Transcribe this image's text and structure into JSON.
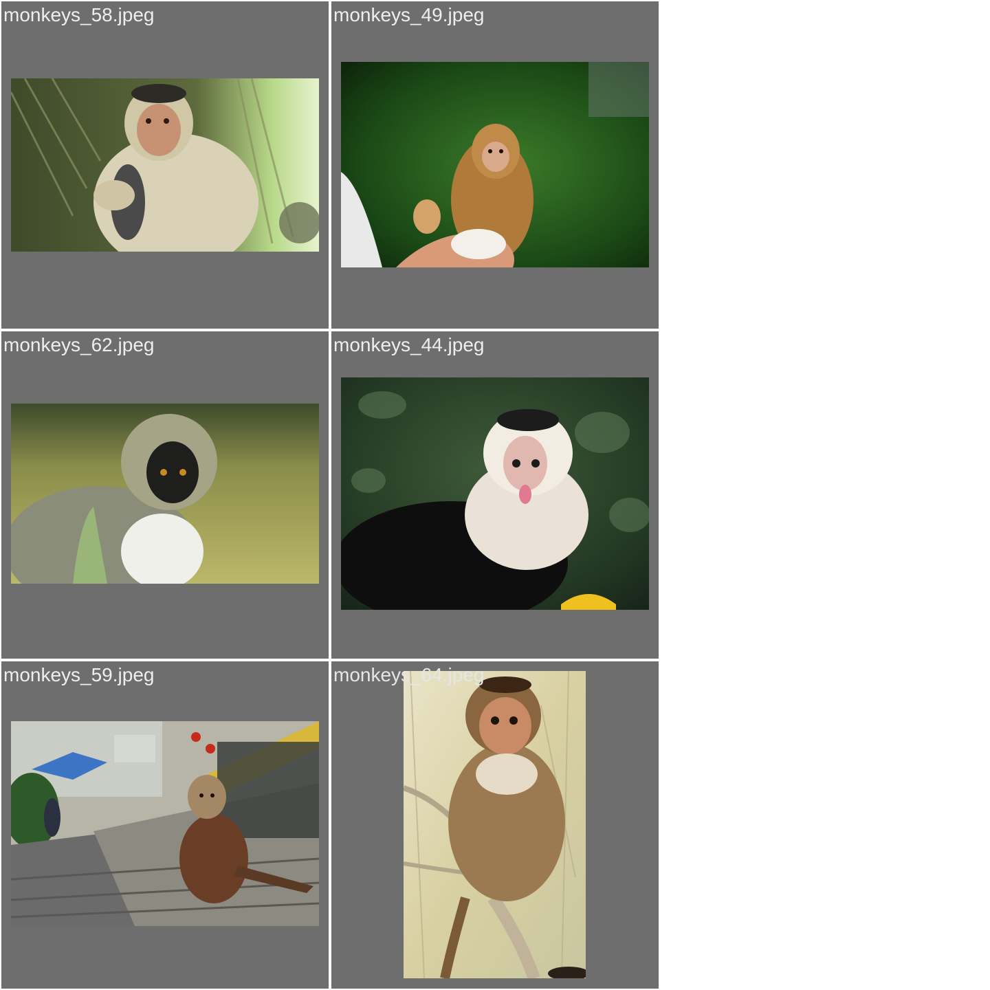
{
  "gallery": {
    "tiles": [
      {
        "filename": "monkeys_58.jpeg",
        "subject": "macaque-eating-rat"
      },
      {
        "filename": "monkeys_49.jpeg",
        "subject": "baby-monkey-on-hand"
      },
      {
        "filename": "monkeys_62.jpeg",
        "subject": "vervet-monkey"
      },
      {
        "filename": "monkeys_44.jpeg",
        "subject": "capuchin-tongue-out"
      },
      {
        "filename": "monkeys_59.jpeg",
        "subject": "macaque-on-stairs"
      },
      {
        "filename": "monkeys_64.jpeg",
        "subject": "bonnet-macaque-on-branch"
      }
    ]
  },
  "colors": {
    "tile_background": "#6e6e6e",
    "page_background": "#ffffff",
    "label_text": "#eeeeee"
  }
}
